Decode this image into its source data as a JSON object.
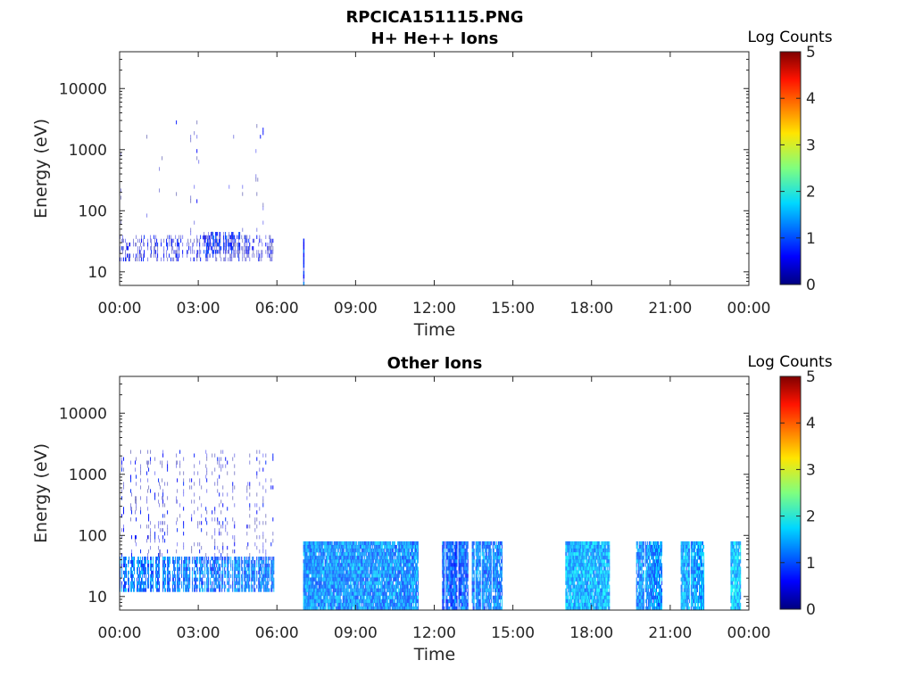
{
  "figure_title": "RPCICA151115.PNG",
  "chart_data": [
    {
      "type": "heatmap",
      "title": "H+ He++ Ions",
      "xlabel": "Time",
      "ylabel": "Energy (eV)",
      "x_ticks": [
        "00:00",
        "03:00",
        "06:00",
        "09:00",
        "12:00",
        "15:00",
        "18:00",
        "21:00",
        "00:00"
      ],
      "x_range_hours": [
        0,
        24
      ],
      "y_scale": "log",
      "y_range": [
        6,
        40000
      ],
      "y_ticks": [
        {
          "value": 10,
          "label": "10"
        },
        {
          "value": 100,
          "label": "100"
        },
        {
          "value": 1000,
          "label": "1000"
        },
        {
          "value": 10000,
          "label": "10000"
        }
      ],
      "colorbar": {
        "label": "Log Counts",
        "range": [
          0,
          5
        ],
        "ticks": [
          "0",
          "1",
          "2",
          "3",
          "4",
          "5"
        ],
        "colormap": "jet"
      },
      "segments": [
        {
          "t_start": 0.0,
          "t_end": 5.9,
          "e_min": 15,
          "e_max": 40,
          "level": 0.4,
          "density": 0.55
        },
        {
          "t_start": 0.0,
          "t_end": 5.9,
          "e_min": 40,
          "e_max": 3000,
          "level": 0.3,
          "density": 0.08
        },
        {
          "t_start": 3.1,
          "t_end": 4.6,
          "e_min": 20,
          "e_max": 45,
          "level": 0.7,
          "density": 0.6
        },
        {
          "t_start": 7.0,
          "t_end": 7.05,
          "e_min": 6,
          "e_max": 35,
          "level": 0.9,
          "density": 1.0
        }
      ]
    },
    {
      "type": "heatmap",
      "title": "Other Ions",
      "xlabel": "Time",
      "ylabel": "Energy (eV)",
      "x_ticks": [
        "00:00",
        "03:00",
        "06:00",
        "09:00",
        "12:00",
        "15:00",
        "18:00",
        "21:00",
        "00:00"
      ],
      "x_range_hours": [
        0,
        24
      ],
      "y_scale": "log",
      "y_range": [
        6,
        40000
      ],
      "y_ticks": [
        {
          "value": 10,
          "label": "10"
        },
        {
          "value": 100,
          "label": "100"
        },
        {
          "value": 1000,
          "label": "1000"
        },
        {
          "value": 10000,
          "label": "10000"
        }
      ],
      "colorbar": {
        "label": "Log Counts",
        "range": [
          0,
          5
        ],
        "ticks": [
          "0",
          "1",
          "2",
          "3",
          "4",
          "5"
        ],
        "colormap": "jet"
      },
      "segments": [
        {
          "t_start": 0.0,
          "t_end": 5.9,
          "e_min": 12,
          "e_max": 45,
          "level": 1.2,
          "density": 0.8
        },
        {
          "t_start": 0.0,
          "t_end": 5.9,
          "e_min": 45,
          "e_max": 2500,
          "level": 0.4,
          "density": 0.25
        },
        {
          "t_start": 7.0,
          "t_end": 11.4,
          "e_min": 6,
          "e_max": 80,
          "level": 1.3,
          "density": 0.95
        },
        {
          "t_start": 12.3,
          "t_end": 13.3,
          "e_min": 6,
          "e_max": 80,
          "level": 1.1,
          "density": 0.9
        },
        {
          "t_start": 13.4,
          "t_end": 14.6,
          "e_min": 6,
          "e_max": 80,
          "level": 1.2,
          "density": 0.9
        },
        {
          "t_start": 17.0,
          "t_end": 18.7,
          "e_min": 6,
          "e_max": 80,
          "level": 1.5,
          "density": 0.95
        },
        {
          "t_start": 19.7,
          "t_end": 20.7,
          "e_min": 6,
          "e_max": 80,
          "level": 1.3,
          "density": 0.9
        },
        {
          "t_start": 21.4,
          "t_end": 22.3,
          "e_min": 6,
          "e_max": 80,
          "level": 1.4,
          "density": 0.9
        },
        {
          "t_start": 23.3,
          "t_end": 23.7,
          "e_min": 6,
          "e_max": 80,
          "level": 1.6,
          "density": 0.95
        }
      ]
    }
  ]
}
